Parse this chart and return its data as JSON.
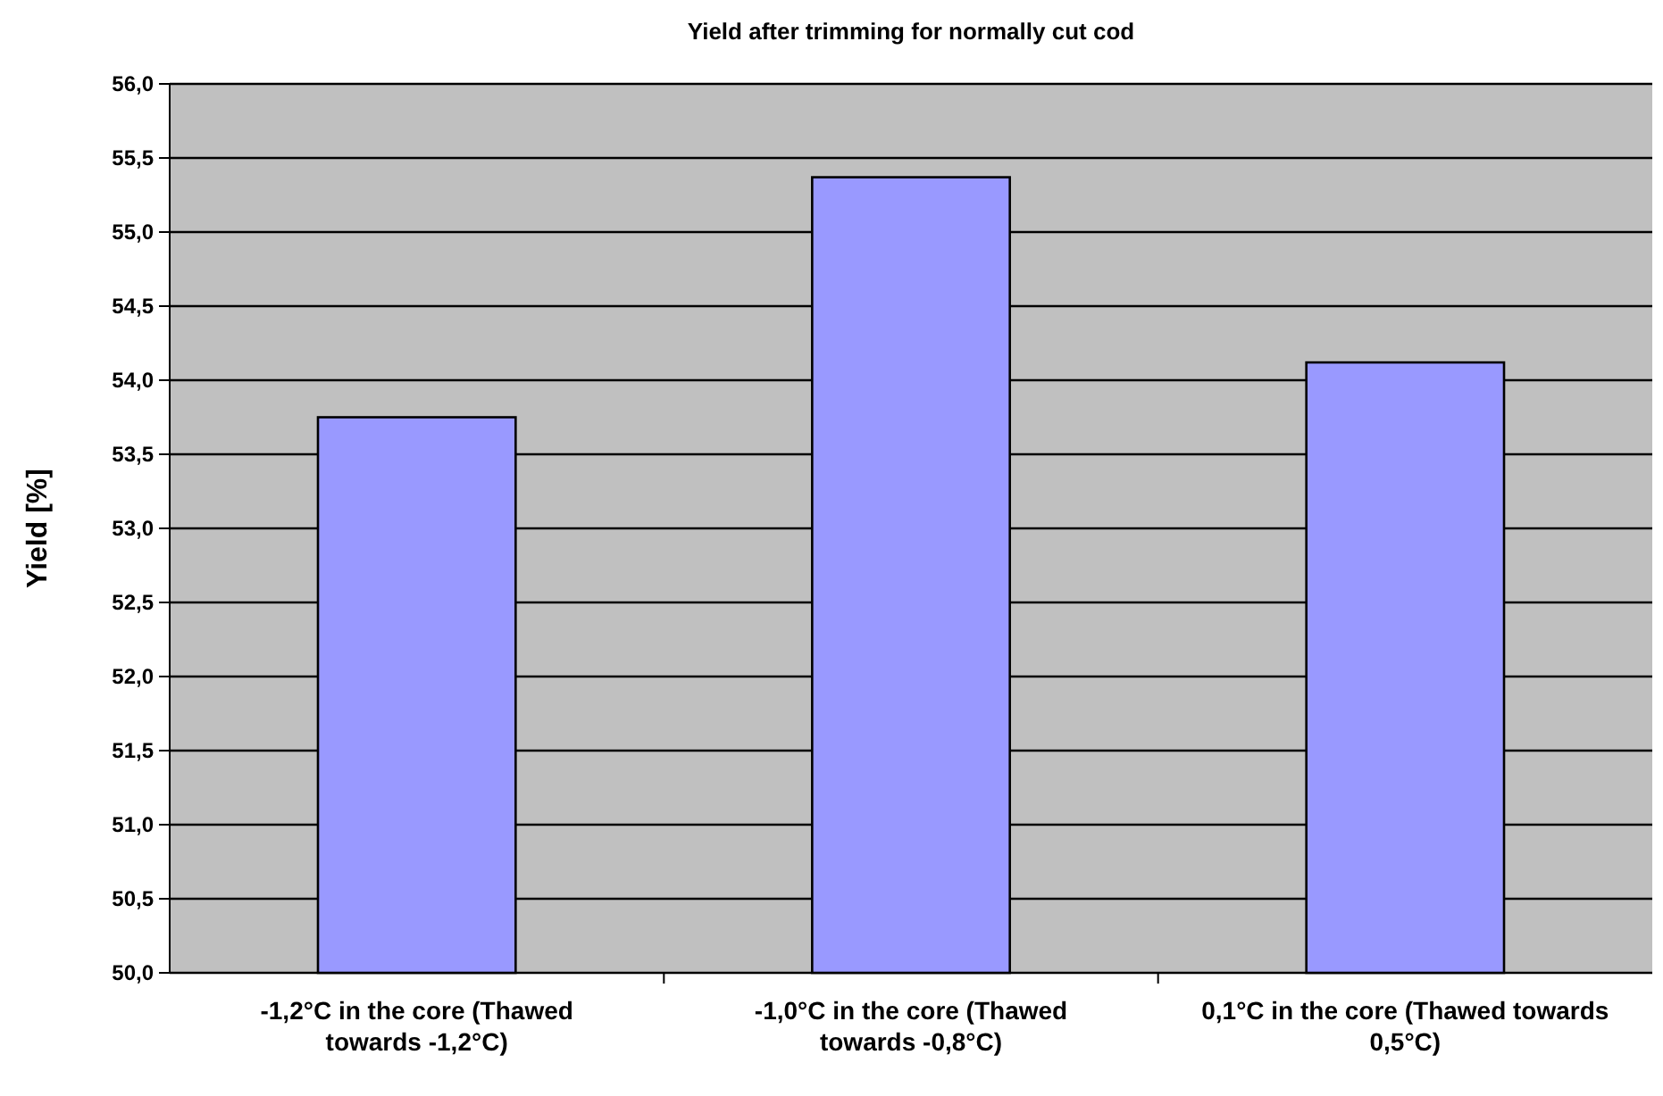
{
  "chart_data": {
    "type": "bar",
    "title": "Yield after trimming for normally cut cod",
    "ylabel": "Yield [%]",
    "categories": [
      "-1,2°C in the core (Thawed towards -1,2°C)",
      "-1,0°C in the core (Thawed towards -0,8°C)",
      "0,1°C in the core (Thawed towards 0,5°C)"
    ],
    "values": [
      53.75,
      55.37,
      54.12
    ],
    "color": "#9999ff",
    "ylim": [
      50,
      56
    ],
    "yticks": [
      {
        "value": 50,
        "label": "50,0"
      },
      {
        "value": 50.5,
        "label": "50,5"
      },
      {
        "value": 51,
        "label": "51,0"
      },
      {
        "value": 51.5,
        "label": "51,5"
      },
      {
        "value": 52,
        "label": "52,0"
      },
      {
        "value": 52.5,
        "label": "52,5"
      },
      {
        "value": 53,
        "label": "53,0"
      },
      {
        "value": 53.5,
        "label": "53,5"
      },
      {
        "value": 54,
        "label": "54,0"
      },
      {
        "value": 54.5,
        "label": "54,5"
      },
      {
        "value": 55,
        "label": "55,0"
      },
      {
        "value": 55.5,
        "label": "55,5"
      },
      {
        "value": 56,
        "label": "56,0"
      }
    ],
    "grid": "y"
  }
}
